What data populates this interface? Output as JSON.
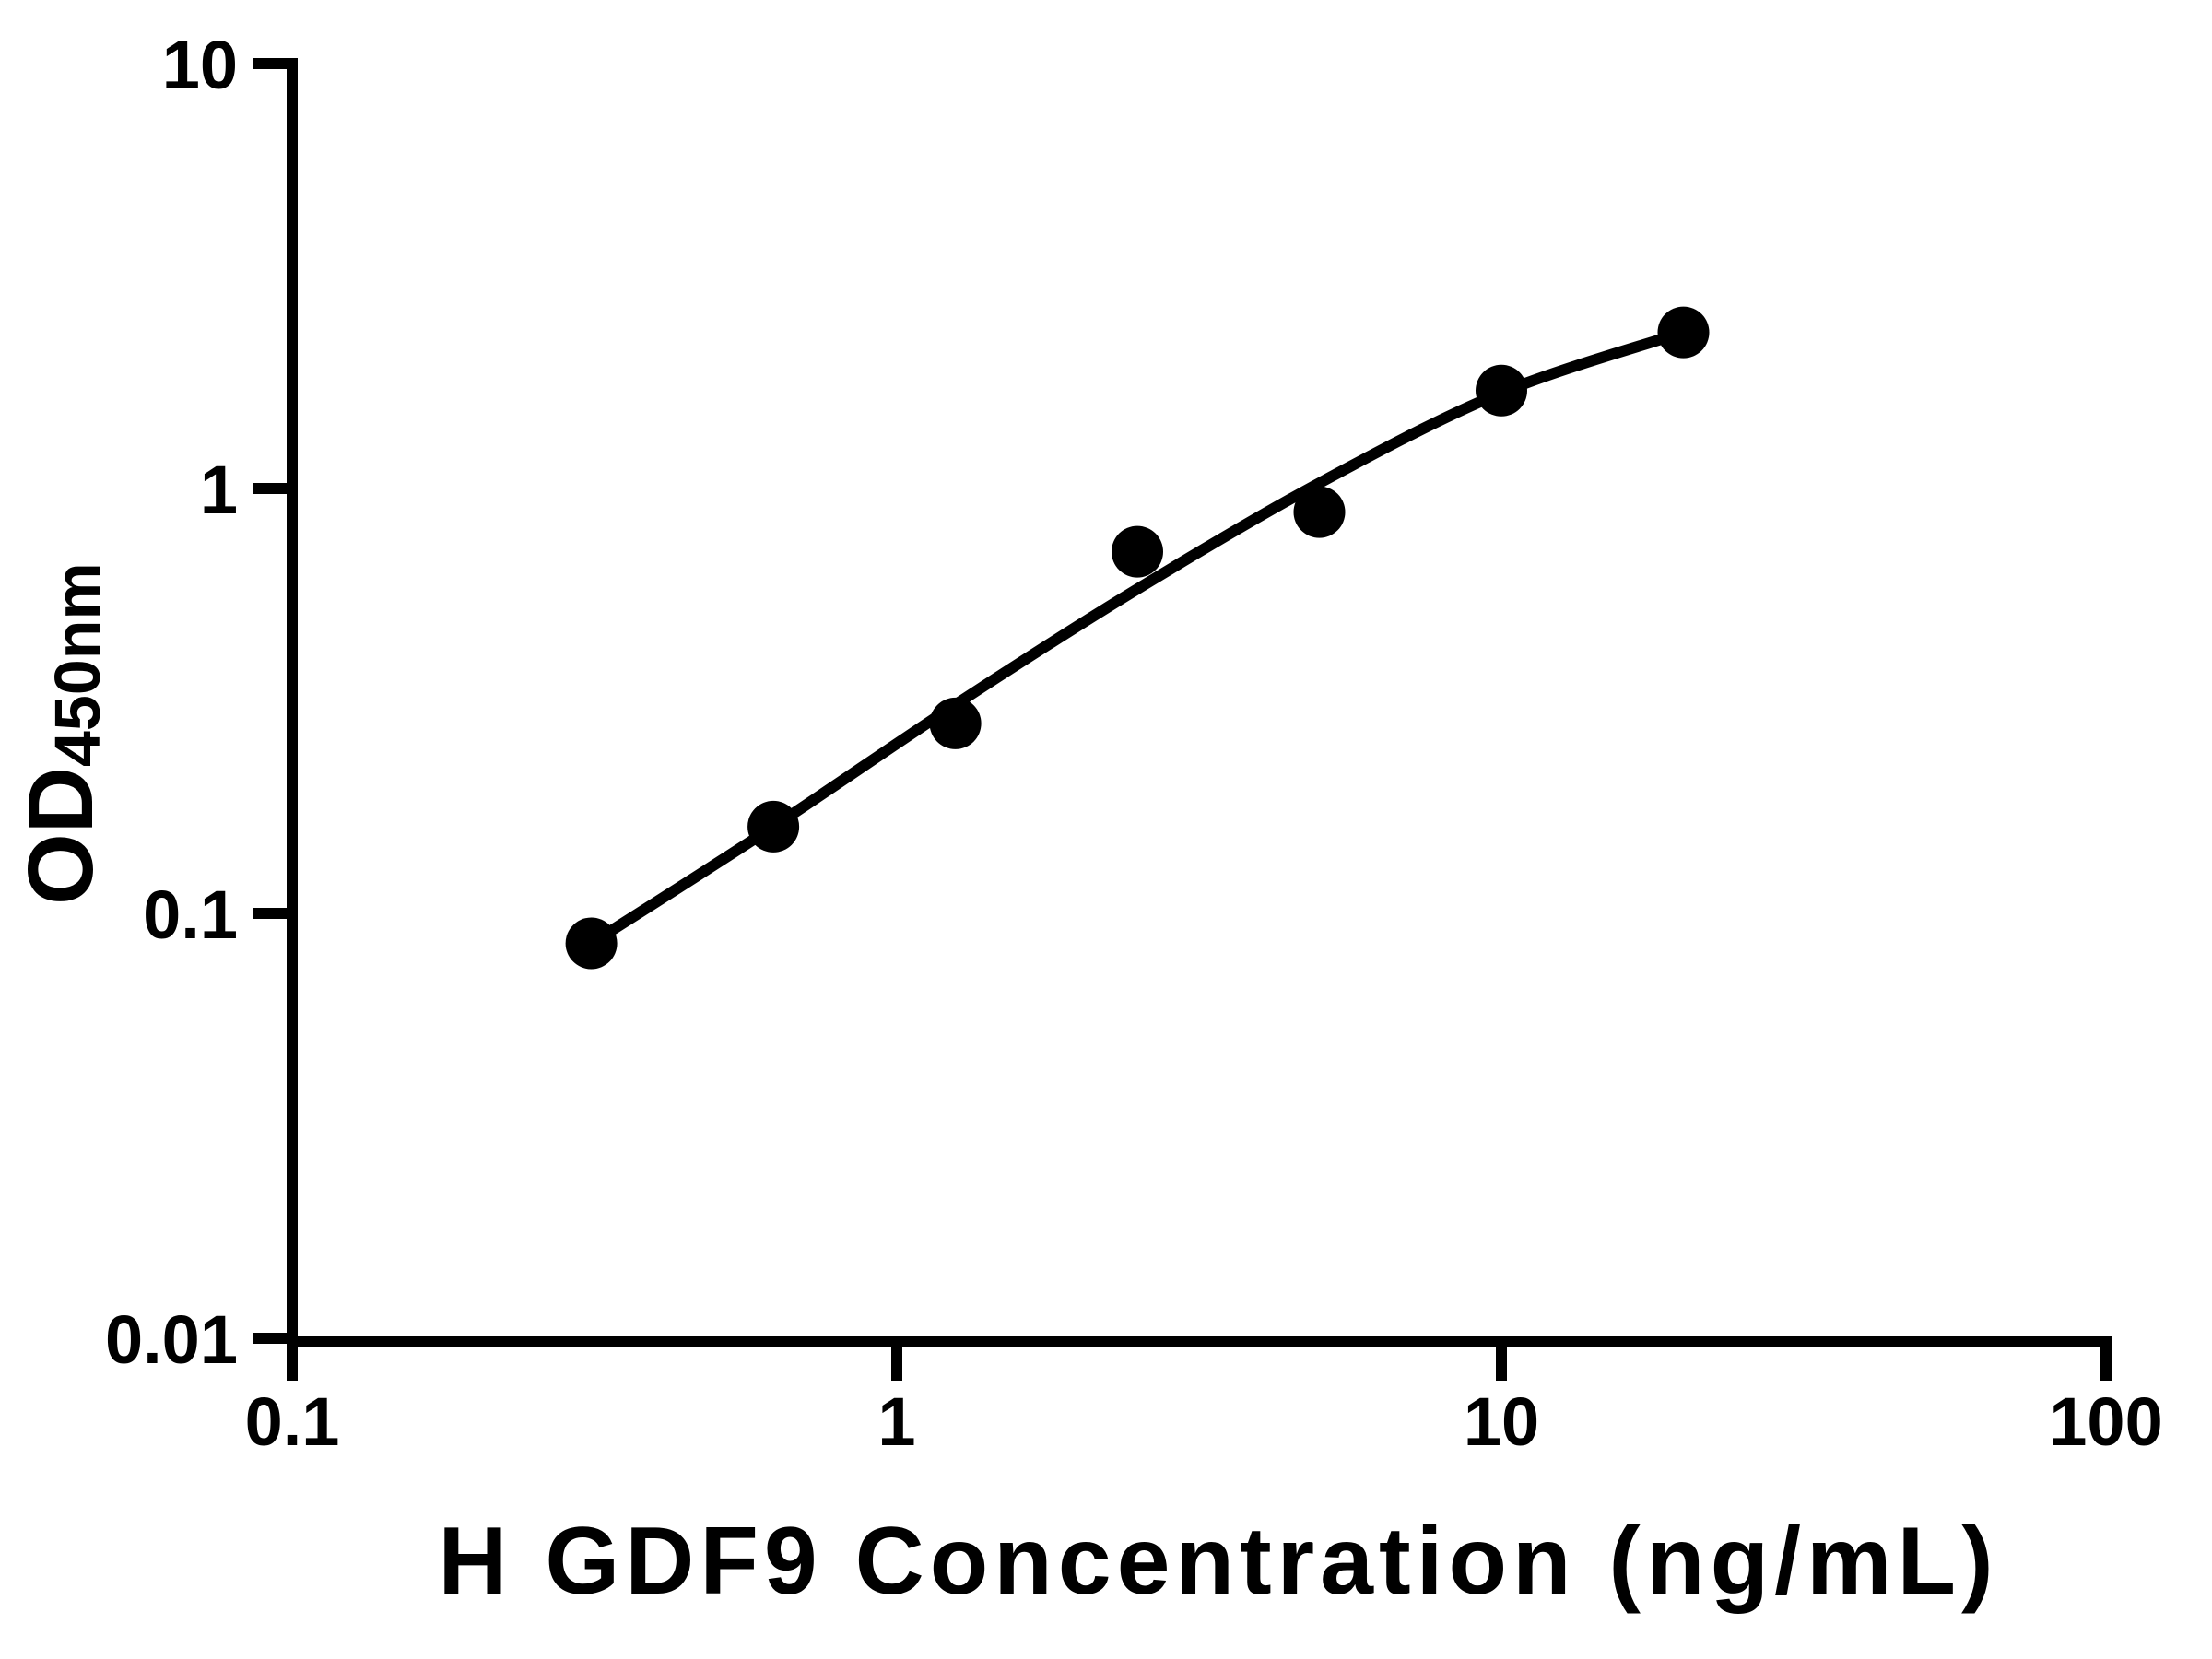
{
  "figure": {
    "background_color": "#ffffff",
    "ink_color": "#000000"
  },
  "chart_data": {
    "type": "scatter",
    "title": "",
    "xlabel": "H GDF9 Concentration (ng/mL)",
    "ylabel_main": "OD",
    "ylabel_sub": "450nm",
    "x_scale": "log",
    "y_scale": "log",
    "xlim": [
      0.1,
      100
    ],
    "ylim": [
      0.01,
      10
    ],
    "grid": "off",
    "legend": "none",
    "x_ticks": [
      {
        "value": 0.1,
        "label": "0.1"
      },
      {
        "value": 1,
        "label": "1"
      },
      {
        "value": 10,
        "label": "10"
      },
      {
        "value": 100,
        "label": "100"
      }
    ],
    "y_ticks": [
      {
        "value": 0.01,
        "label": "0.01"
      },
      {
        "value": 0.1,
        "label": "0.1"
      },
      {
        "value": 1,
        "label": "1"
      },
      {
        "value": 10,
        "label": "10"
      }
    ],
    "series": [
      {
        "name": "standard-data-points",
        "type": "scatter",
        "marker": "filled-circle",
        "color": "#000000",
        "points": [
          {
            "x": 0.3125,
            "y": 0.085
          },
          {
            "x": 0.625,
            "y": 0.16
          },
          {
            "x": 1.25,
            "y": 0.28
          },
          {
            "x": 2.5,
            "y": 0.71
          },
          {
            "x": 5,
            "y": 0.88
          },
          {
            "x": 10,
            "y": 1.7
          },
          {
            "x": 20,
            "y": 2.33
          }
        ]
      },
      {
        "name": "fitted-standard-curve",
        "type": "line",
        "color": "#000000",
        "points": [
          {
            "x": 0.3125,
            "y": 0.085
          },
          {
            "x": 0.625,
            "y": 0.16
          },
          {
            "x": 1.25,
            "y": 0.31
          },
          {
            "x": 2.5,
            "y": 0.58
          },
          {
            "x": 5,
            "y": 1.03
          },
          {
            "x": 10,
            "y": 1.68
          },
          {
            "x": 20,
            "y": 2.33
          }
        ]
      }
    ]
  }
}
